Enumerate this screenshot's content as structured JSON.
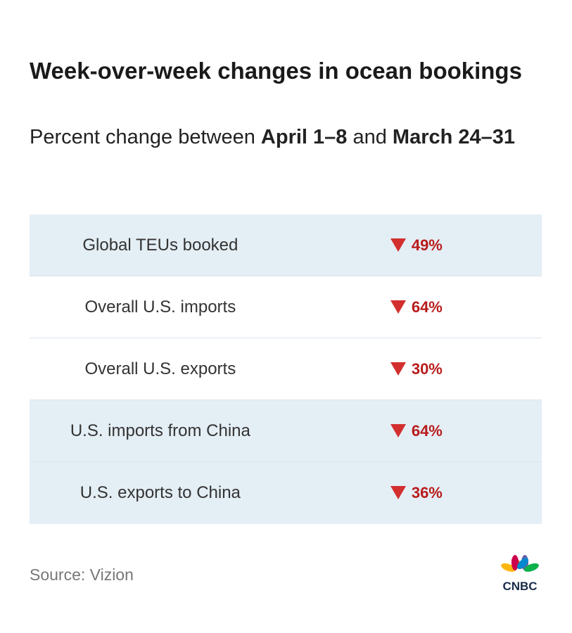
{
  "title": "Week-over-week changes in ocean bookings",
  "subtitle": {
    "prefix": "Percent change between ",
    "period1": "April 1–8",
    "middle": " and ",
    "period2": "March 24–31"
  },
  "rows": [
    {
      "label": "Global TEUs booked",
      "value": "49%",
      "direction": "down",
      "shaded": true
    },
    {
      "label": "Overall U.S. imports",
      "value": "64%",
      "direction": "down",
      "shaded": false
    },
    {
      "label": "Overall U.S. exports",
      "value": "30%",
      "direction": "down",
      "shaded": false
    },
    {
      "label": "U.S. imports from China",
      "value": "64%",
      "direction": "down",
      "shaded": true
    },
    {
      "label": "U.S. exports to China",
      "value": "36%",
      "direction": "down",
      "shaded": true
    }
  ],
  "source": "Source: Vizion",
  "logo": {
    "text": "CNBC",
    "icon": "peacock-logo"
  },
  "colors": {
    "decrease": "#b81c1c",
    "row_shade": "#e4eef5"
  }
}
